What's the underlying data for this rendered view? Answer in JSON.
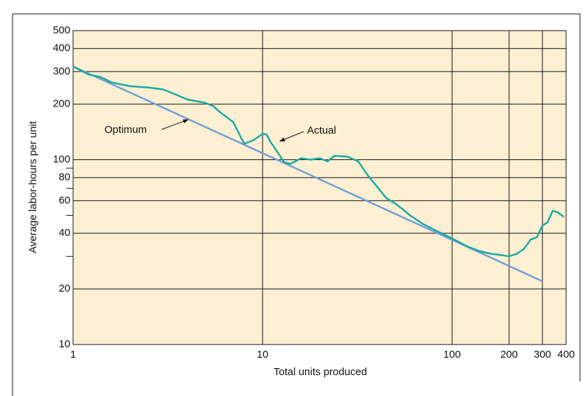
{
  "chart_data": {
    "type": "line",
    "xlabel": "Total units produced",
    "ylabel": "Average labor-hours per unit",
    "log_x": true,
    "log_y": true,
    "grid": true,
    "background": "#fcefd2",
    "xlim": [
      1,
      400
    ],
    "ylim": [
      10,
      500
    ],
    "xticks": [
      1,
      10,
      100,
      200,
      300,
      400
    ],
    "xgrid": [
      10,
      100,
      200,
      300
    ],
    "yticks": [
      10,
      20,
      40,
      60,
      80,
      100,
      200,
      300,
      400,
      500
    ],
    "yminor_ticks": [
      30,
      50,
      70,
      90
    ],
    "annotations": [
      "Optimum",
      "Actual"
    ],
    "series": [
      {
        "name": "Optimum",
        "color": "#6f9fd6",
        "x": [
          1,
          300
        ],
        "values": [
          320,
          22
        ]
      },
      {
        "name": "Actual",
        "color": "#1aa9a3",
        "x": [
          1,
          1.2,
          1.4,
          1.6,
          2,
          2.5,
          3,
          3.5,
          4,
          5,
          5.5,
          6,
          7,
          8,
          9,
          10,
          10.5,
          11,
          12,
          13,
          14,
          16,
          18,
          20,
          22,
          24,
          28,
          32,
          36,
          40,
          45,
          50,
          55,
          60,
          70,
          80,
          100,
          120,
          140,
          160,
          180,
          200,
          220,
          240,
          260,
          280,
          300,
          320,
          340,
          360,
          390
        ],
        "values": [
          320,
          290,
          280,
          262,
          250,
          246,
          240,
          225,
          212,
          203,
          195,
          180,
          160,
          122,
          128,
          138,
          137,
          125,
          110,
          97,
          95,
          102,
          100,
          102,
          98,
          105,
          104,
          98,
          82,
          72,
          62,
          58,
          54,
          50,
          45,
          42,
          37.5,
          34,
          32,
          31,
          30.5,
          30,
          31,
          33,
          37,
          38,
          44,
          46,
          53,
          52,
          49
        ]
      }
    ]
  }
}
